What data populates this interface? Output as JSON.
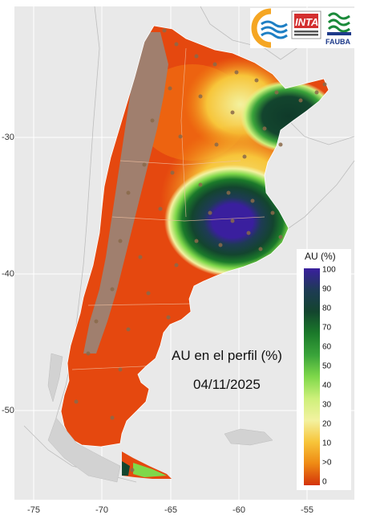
{
  "map": {
    "title": "AU en el perfil (%)",
    "date": "04/11/2025",
    "x_ticks": [
      "-75",
      "-70",
      "-65",
      "-60",
      "-55"
    ],
    "y_ticks": [
      "-30",
      "-40",
      "-50"
    ]
  },
  "legend": {
    "title": "AU (%)",
    "labels": [
      "100",
      "90",
      "80",
      "70",
      "60",
      "50",
      "40",
      "30",
      "20",
      "10",
      ">0",
      "0"
    ]
  },
  "logos": {
    "inta": "INTA",
    "fauba": "FAUBA"
  },
  "colors": {
    "background": "#e9e9e9",
    "grid": "#ffffff",
    "andes": "#a07f6e",
    "dry": "#e5480f",
    "wet": "#13452e",
    "saturated": "#3a1f9e"
  }
}
